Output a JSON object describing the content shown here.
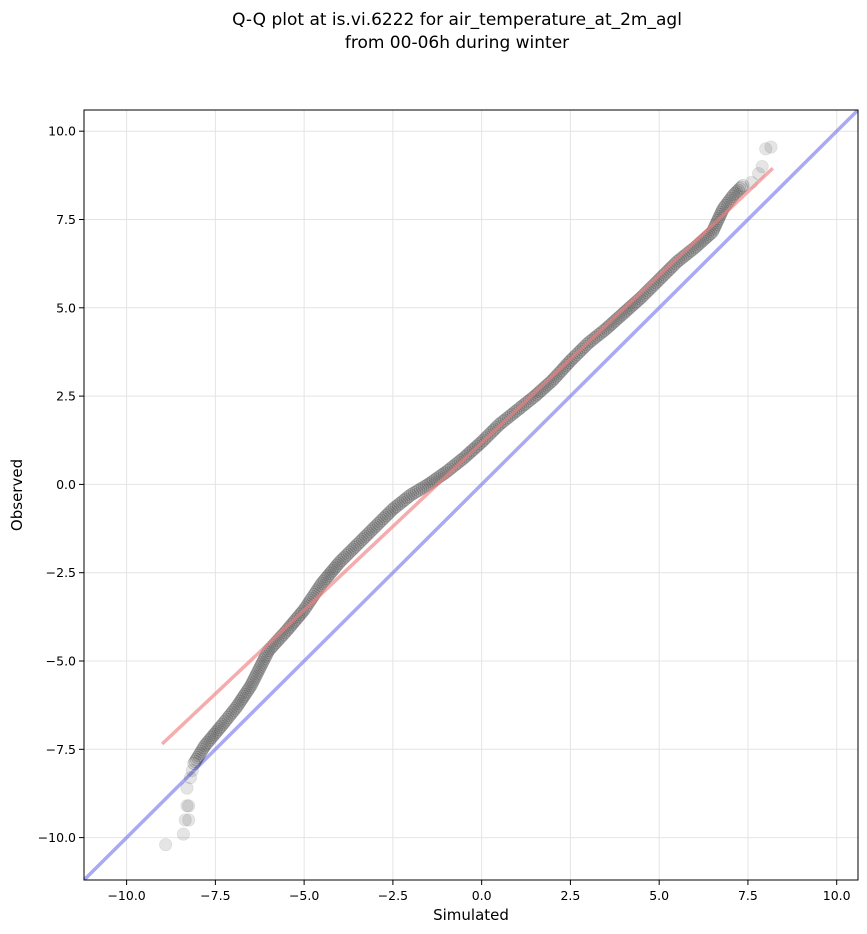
{
  "chart_data": {
    "type": "scatter",
    "title_lines": [
      "Q-Q plot at is.vi.6222 for air_temperature_at_2m_agl",
      "from 00-06h during winter"
    ],
    "xlabel": "Simulated",
    "ylabel": "Observed",
    "xlim": [
      -11.2,
      10.6
    ],
    "ylim": [
      -11.2,
      10.6
    ],
    "xticks": [
      -10.0,
      -7.5,
      -5.0,
      -2.5,
      0.0,
      2.5,
      5.0,
      7.5,
      10.0
    ],
    "yticks": [
      -10.0,
      -7.5,
      -5.0,
      -2.5,
      0.0,
      2.5,
      5.0,
      7.5,
      10.0
    ],
    "xtick_labels": [
      "−10.0",
      "−7.5",
      "−5.0",
      "−2.5",
      "0.0",
      "2.5",
      "5.0",
      "7.5",
      "10.0"
    ],
    "ytick_labels": [
      "−10.0",
      "−7.5",
      "−5.0",
      "−2.5",
      "0.0",
      "2.5",
      "5.0",
      "7.5",
      "10.0"
    ],
    "grid": true,
    "colors": {
      "points": "#000000",
      "fit_line": "#f08080",
      "identity_line": "#7b7bf0"
    },
    "fit_line": {
      "x": [
        -9.0,
        8.2
      ],
      "y": [
        -7.35,
        8.95
      ]
    },
    "identity_line": {
      "x": [
        -11.2,
        10.6
      ],
      "y": [
        -11.2,
        10.6
      ]
    },
    "quantile_curve": [
      [
        -8.1,
        -7.9
      ],
      [
        -7.8,
        -7.4
      ],
      [
        -7.3,
        -6.8
      ],
      [
        -6.9,
        -6.3
      ],
      [
        -6.5,
        -5.7
      ],
      [
        -6.0,
        -4.7
      ],
      [
        -5.5,
        -4.15
      ],
      [
        -5.0,
        -3.55
      ],
      [
        -4.5,
        -2.8
      ],
      [
        -4.0,
        -2.2
      ],
      [
        -3.5,
        -1.7
      ],
      [
        -3.0,
        -1.2
      ],
      [
        -2.5,
        -0.7
      ],
      [
        -2.0,
        -0.3
      ],
      [
        -1.5,
        0.0
      ],
      [
        -1.0,
        0.35
      ],
      [
        -0.5,
        0.75
      ],
      [
        0.0,
        1.2
      ],
      [
        0.5,
        1.7
      ],
      [
        1.0,
        2.1
      ],
      [
        1.5,
        2.5
      ],
      [
        2.0,
        2.95
      ],
      [
        2.5,
        3.5
      ],
      [
        3.0,
        4.0
      ],
      [
        3.5,
        4.4
      ],
      [
        4.0,
        4.85
      ],
      [
        4.5,
        5.3
      ],
      [
        5.0,
        5.8
      ],
      [
        5.5,
        6.3
      ],
      [
        6.0,
        6.7
      ],
      [
        6.5,
        7.15
      ],
      [
        6.8,
        7.8
      ],
      [
        7.1,
        8.2
      ],
      [
        7.4,
        8.5
      ]
    ],
    "tail_points_low": [
      [
        -8.9,
        -10.2
      ],
      [
        -8.4,
        -9.9
      ],
      [
        -8.35,
        -9.5
      ],
      [
        -8.25,
        -9.5
      ],
      [
        -8.3,
        -9.1
      ],
      [
        -8.25,
        -9.1
      ],
      [
        -8.3,
        -8.6
      ],
      [
        -8.2,
        -8.3
      ],
      [
        -8.15,
        -8.1
      ]
    ],
    "tail_points_high": [
      [
        7.6,
        8.55
      ],
      [
        7.8,
        8.8
      ],
      [
        7.9,
        9.0
      ],
      [
        8.0,
        9.5
      ],
      [
        8.15,
        9.55
      ]
    ]
  }
}
